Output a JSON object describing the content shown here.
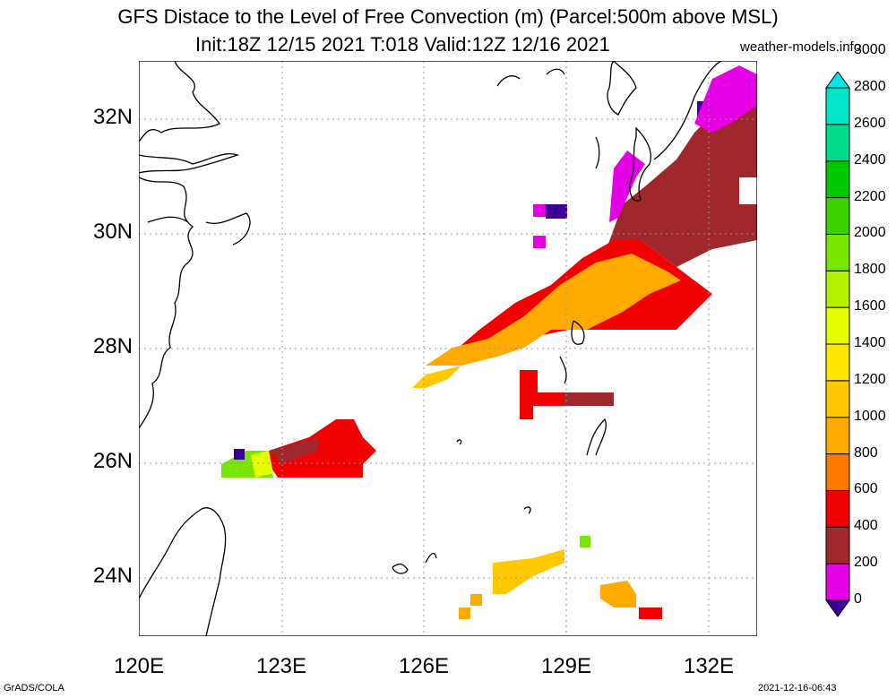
{
  "title": "GFS Distace to the Level of Free Convection (m) (Parcel:500m above MSL)",
  "subtitle": "Init:18Z 12/15 2021 T:018 Valid:12Z 12/16 2021",
  "source": "weather-models.info",
  "footer_left": "GrADS/COLA",
  "footer_right": "2021-12-16-06:43",
  "map": {
    "lon_range": [
      120,
      133
    ],
    "lat_range": [
      23,
      33
    ],
    "lat_labels": [
      "24N",
      "26N",
      "28N",
      "30N",
      "32N"
    ],
    "lon_labels": [
      "120E",
      "123E",
      "126E",
      "129E",
      "132E"
    ],
    "grid": "dotted"
  },
  "colorbar": {
    "labels": [
      "0",
      "200",
      "400",
      "600",
      "800",
      "1000",
      "1200",
      "1400",
      "1600",
      "1800",
      "2000",
      "2200",
      "2400",
      "2600",
      "2800",
      "3000"
    ],
    "colors": [
      "#3c0096",
      "#e600e6",
      "#a0282d",
      "#f00000",
      "#ff7800",
      "#ffaa00",
      "#ffc800",
      "#ffe600",
      "#e6ff00",
      "#b4f000",
      "#78e600",
      "#3cd200",
      "#00c800",
      "#00dc8c",
      "#00e6c8",
      "#00e6e6"
    ]
  },
  "chart_data": {
    "type": "heatmap",
    "variable": "Distance to LFC (m)",
    "cell_deg": 0.25,
    "cells": [
      [
        130.25,
        32.75,
        100
      ],
      [
        130.5,
        32.75,
        100
      ],
      [
        130.75,
        32.5,
        300
      ],
      [
        131,
        32.25,
        300
      ],
      [
        131.25,
        32,
        300
      ],
      [
        131.5,
        31.75,
        300
      ],
      [
        131.75,
        31.5,
        300
      ],
      [
        132,
        31.25,
        300
      ],
      [
        132.25,
        31,
        300
      ],
      [
        132.5,
        30.75,
        300
      ],
      [
        132.75,
        30.5,
        300
      ],
      [
        131.75,
        31.75,
        150
      ],
      [
        132,
        32,
        150
      ],
      [
        132.25,
        32.25,
        150
      ],
      [
        132.5,
        32.5,
        150
      ],
      [
        132.75,
        32.75,
        150
      ],
      [
        131.25,
        32.5,
        50
      ],
      [
        131.5,
        32.25,
        50
      ],
      [
        130,
        31,
        100
      ],
      [
        129.75,
        30.75,
        100
      ],
      [
        129.5,
        30.5,
        300
      ],
      [
        129.25,
        30.25,
        300
      ],
      [
        129,
        30,
        300
      ],
      [
        128.75,
        29.75,
        300
      ],
      [
        128.5,
        29.5,
        500
      ],
      [
        128.25,
        29.25,
        500
      ],
      [
        128,
        29,
        500
      ],
      [
        127.75,
        28.75,
        500
      ],
      [
        127.5,
        28.5,
        500
      ],
      [
        127.25,
        28.25,
        500
      ],
      [
        127,
        28,
        500
      ],
      [
        126.75,
        27.75,
        700
      ],
      [
        126.5,
        27.5,
        700
      ],
      [
        126.25,
        27.25,
        900
      ],
      [
        129.5,
        29.75,
        900
      ],
      [
        129.75,
        29.5,
        900
      ],
      [
        130,
        29.25,
        900
      ],
      [
        130.25,
        29,
        900
      ],
      [
        130.5,
        28.75,
        700
      ],
      [
        130.75,
        28.5,
        700
      ],
      [
        131,
        28.25,
        500
      ],
      [
        131.25,
        28,
        500
      ],
      [
        128.5,
        27.25,
        500
      ],
      [
        128.75,
        27,
        300
      ],
      [
        129,
        27,
        500
      ],
      [
        129.25,
        27,
        300
      ],
      [
        129.5,
        27,
        500
      ],
      [
        130.25,
        27.25,
        500
      ],
      [
        128.25,
        26.75,
        500
      ],
      [
        128.5,
        26.75,
        1600
      ],
      [
        129.25,
        26.5,
        1400
      ],
      [
        122,
        26,
        50
      ],
      [
        122.25,
        25.75,
        1800
      ],
      [
        122.5,
        26,
        1800
      ],
      [
        122.75,
        26,
        300
      ],
      [
        123,
        26,
        500
      ],
      [
        123.5,
        26,
        500
      ],
      [
        124,
        26.25,
        500
      ],
      [
        124.25,
        26.5,
        1200
      ],
      [
        124.5,
        26.75,
        1400
      ],
      [
        124.75,
        26.25,
        500
      ],
      [
        127.5,
        24,
        1000
      ],
      [
        127.75,
        24.25,
        1000
      ],
      [
        128,
        24.5,
        1000
      ],
      [
        128.25,
        24.75,
        1000
      ],
      [
        128.5,
        25,
        1200
      ],
      [
        129.25,
        25.25,
        1600
      ],
      [
        129.5,
        23.75,
        1000
      ],
      [
        129.75,
        23.5,
        1600
      ],
      [
        130.25,
        23.75,
        1200
      ],
      [
        130.5,
        23.5,
        500
      ],
      [
        127,
        23.25,
        800
      ]
    ]
  }
}
